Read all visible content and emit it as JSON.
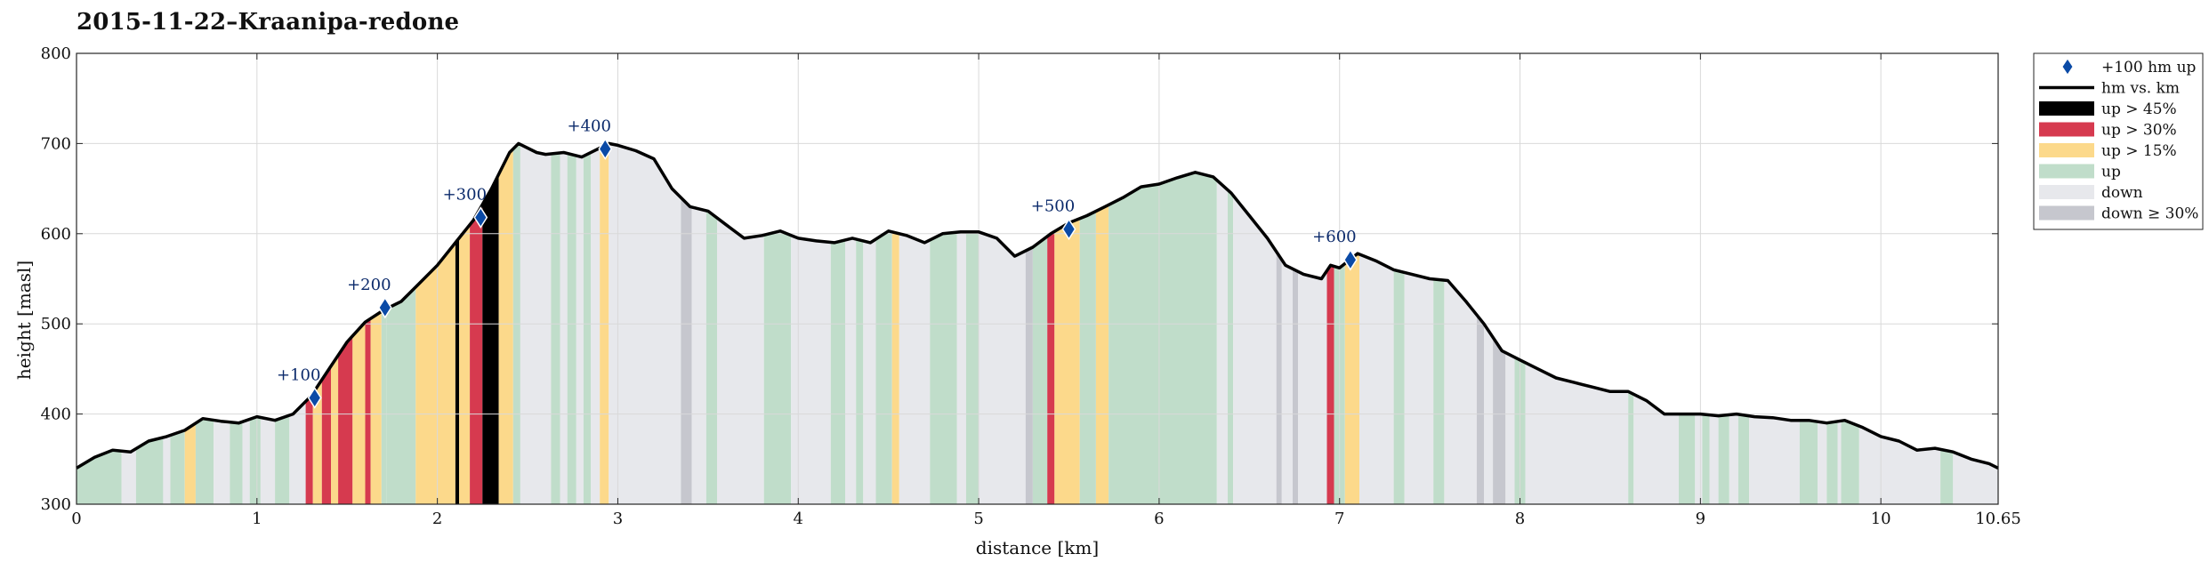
{
  "title": "2015-11-22–Kraanipa-redone",
  "colors": {
    "up45": "#000000",
    "up30": "#d63a4f",
    "up15": "#fcd98b",
    "up": "#c0ddca",
    "down": "#e7e8ec",
    "down30": "#c6c7ce",
    "profile": "#000000",
    "marker": "#0a4aa6",
    "grid": "#d9d9d9"
  },
  "chart_data": {
    "type": "area",
    "xlabel": "distance [km]",
    "ylabel": "height [masl]",
    "xlim": [
      0,
      10.65
    ],
    "ylim": [
      300,
      800
    ],
    "x_ticks": [
      "0",
      "1",
      "2",
      "3",
      "4",
      "5",
      "6",
      "7",
      "8",
      "9",
      "10",
      "10.65"
    ],
    "x_tick_values": [
      0,
      1,
      2,
      3,
      4,
      5,
      6,
      7,
      8,
      9,
      10,
      10.65
    ],
    "y_ticks": [
      "300",
      "400",
      "500",
      "600",
      "700",
      "800"
    ],
    "y_tick_values": [
      300,
      400,
      500,
      600,
      700,
      800
    ],
    "grid": true,
    "legend_position": "outside-right",
    "legend": [
      {
        "key": "marker",
        "label": "+100 hm up"
      },
      {
        "key": "line",
        "label": "hm vs. km"
      },
      {
        "key": "up45",
        "label": "up > 45%"
      },
      {
        "key": "up30",
        "label": "up > 30%"
      },
      {
        "key": "up15",
        "label": "up > 15%"
      },
      {
        "key": "up",
        "label": "up"
      },
      {
        "key": "down",
        "label": "down"
      },
      {
        "key": "down30",
        "label": "down ≥ 30%"
      }
    ],
    "profile": {
      "x": [
        0,
        0.1,
        0.2,
        0.3,
        0.4,
        0.5,
        0.6,
        0.7,
        0.8,
        0.9,
        1.0,
        1.1,
        1.2,
        1.3,
        1.4,
        1.5,
        1.6,
        1.7,
        1.8,
        1.9,
        2.0,
        2.1,
        2.2,
        2.3,
        2.4,
        2.45,
        2.55,
        2.6,
        2.7,
        2.8,
        2.95,
        3.0,
        3.1,
        3.2,
        3.3,
        3.4,
        3.5,
        3.6,
        3.7,
        3.8,
        3.9,
        4.0,
        4.1,
        4.2,
        4.3,
        4.4,
        4.5,
        4.6,
        4.7,
        4.8,
        4.9,
        5.0,
        5.1,
        5.2,
        5.3,
        5.4,
        5.5,
        5.6,
        5.7,
        5.8,
        5.9,
        6.0,
        6.1,
        6.2,
        6.3,
        6.4,
        6.5,
        6.6,
        6.7,
        6.8,
        6.9,
        6.95,
        7.0,
        7.1,
        7.2,
        7.3,
        7.4,
        7.5,
        7.6,
        7.7,
        7.8,
        7.9,
        8.0,
        8.1,
        8.2,
        8.3,
        8.4,
        8.5,
        8.6,
        8.7,
        8.8,
        8.9,
        9.0,
        9.1,
        9.2,
        9.3,
        9.4,
        9.5,
        9.6,
        9.7,
        9.8,
        9.9,
        10.0,
        10.1,
        10.2,
        10.3,
        10.4,
        10.5,
        10.6,
        10.65
      ],
      "y": [
        340,
        352,
        360,
        358,
        370,
        375,
        382,
        395,
        392,
        390,
        397,
        393,
        400,
        420,
        450,
        480,
        502,
        515,
        525,
        545,
        565,
        590,
        615,
        650,
        690,
        700,
        690,
        688,
        690,
        685,
        700,
        698,
        692,
        683,
        650,
        630,
        625,
        610,
        595,
        598,
        603,
        595,
        592,
        590,
        595,
        590,
        603,
        598,
        590,
        600,
        602,
        602,
        595,
        575,
        585,
        600,
        612,
        620,
        630,
        640,
        652,
        655,
        662,
        668,
        663,
        645,
        620,
        595,
        565,
        555,
        550,
        565,
        562,
        578,
        570,
        560,
        555,
        550,
        548,
        525,
        500,
        470,
        460,
        450,
        440,
        435,
        430,
        425,
        425,
        415,
        400,
        400,
        400,
        398,
        400,
        397,
        396,
        393,
        393,
        390,
        393,
        385,
        375,
        370,
        360,
        362,
        358,
        350,
        345,
        340
      ]
    },
    "segments": [
      {
        "x0": 0.0,
        "x1": 0.25,
        "cat": "up"
      },
      {
        "x0": 0.25,
        "x1": 0.33,
        "cat": "down"
      },
      {
        "x0": 0.33,
        "x1": 0.48,
        "cat": "up"
      },
      {
        "x0": 0.48,
        "x1": 0.52,
        "cat": "down"
      },
      {
        "x0": 0.52,
        "x1": 0.6,
        "cat": "up"
      },
      {
        "x0": 0.6,
        "x1": 0.66,
        "cat": "up15"
      },
      {
        "x0": 0.66,
        "x1": 0.76,
        "cat": "up"
      },
      {
        "x0": 0.76,
        "x1": 0.85,
        "cat": "down"
      },
      {
        "x0": 0.85,
        "x1": 0.92,
        "cat": "up"
      },
      {
        "x0": 0.92,
        "x1": 0.96,
        "cat": "down"
      },
      {
        "x0": 0.96,
        "x1": 1.02,
        "cat": "up"
      },
      {
        "x0": 1.02,
        "x1": 1.1,
        "cat": "down"
      },
      {
        "x0": 1.1,
        "x1": 1.18,
        "cat": "up"
      },
      {
        "x0": 1.18,
        "x1": 1.27,
        "cat": "down"
      },
      {
        "x0": 1.27,
        "x1": 1.31,
        "cat": "up30"
      },
      {
        "x0": 1.31,
        "x1": 1.36,
        "cat": "up15"
      },
      {
        "x0": 1.36,
        "x1": 1.41,
        "cat": "up30"
      },
      {
        "x0": 1.41,
        "x1": 1.45,
        "cat": "up15"
      },
      {
        "x0": 1.45,
        "x1": 1.53,
        "cat": "up30"
      },
      {
        "x0": 1.53,
        "x1": 1.6,
        "cat": "up15"
      },
      {
        "x0": 1.6,
        "x1": 1.63,
        "cat": "up30"
      },
      {
        "x0": 1.63,
        "x1": 1.69,
        "cat": "up15"
      },
      {
        "x0": 1.69,
        "x1": 1.72,
        "cat": "up"
      },
      {
        "x0": 1.72,
        "x1": 1.88,
        "cat": "up"
      },
      {
        "x0": 1.88,
        "x1": 2.1,
        "cat": "up15"
      },
      {
        "x0": 2.1,
        "x1": 2.12,
        "cat": "up45"
      },
      {
        "x0": 2.12,
        "x1": 2.18,
        "cat": "up15"
      },
      {
        "x0": 2.18,
        "x1": 2.25,
        "cat": "up30"
      },
      {
        "x0": 2.25,
        "x1": 2.34,
        "cat": "up45"
      },
      {
        "x0": 2.34,
        "x1": 2.42,
        "cat": "up15"
      },
      {
        "x0": 2.42,
        "x1": 2.46,
        "cat": "up"
      },
      {
        "x0": 2.46,
        "x1": 2.63,
        "cat": "down"
      },
      {
        "x0": 2.63,
        "x1": 2.68,
        "cat": "up"
      },
      {
        "x0": 2.68,
        "x1": 2.72,
        "cat": "down"
      },
      {
        "x0": 2.72,
        "x1": 2.77,
        "cat": "up"
      },
      {
        "x0": 2.77,
        "x1": 2.81,
        "cat": "down"
      },
      {
        "x0": 2.81,
        "x1": 2.85,
        "cat": "up"
      },
      {
        "x0": 2.85,
        "x1": 2.9,
        "cat": "down"
      },
      {
        "x0": 2.9,
        "x1": 2.95,
        "cat": "up15"
      },
      {
        "x0": 2.95,
        "x1": 3.35,
        "cat": "down"
      },
      {
        "x0": 3.35,
        "x1": 3.41,
        "cat": "down30"
      },
      {
        "x0": 3.41,
        "x1": 3.49,
        "cat": "down"
      },
      {
        "x0": 3.49,
        "x1": 3.55,
        "cat": "up"
      },
      {
        "x0": 3.55,
        "x1": 3.81,
        "cat": "down"
      },
      {
        "x0": 3.81,
        "x1": 3.96,
        "cat": "up"
      },
      {
        "x0": 3.96,
        "x1": 4.18,
        "cat": "down"
      },
      {
        "x0": 4.18,
        "x1": 4.26,
        "cat": "up"
      },
      {
        "x0": 4.26,
        "x1": 4.32,
        "cat": "down"
      },
      {
        "x0": 4.32,
        "x1": 4.36,
        "cat": "up"
      },
      {
        "x0": 4.36,
        "x1": 4.43,
        "cat": "down"
      },
      {
        "x0": 4.43,
        "x1": 4.52,
        "cat": "up"
      },
      {
        "x0": 4.52,
        "x1": 4.56,
        "cat": "up15"
      },
      {
        "x0": 4.56,
        "x1": 4.73,
        "cat": "down"
      },
      {
        "x0": 4.73,
        "x1": 4.88,
        "cat": "up"
      },
      {
        "x0": 4.88,
        "x1": 4.93,
        "cat": "down"
      },
      {
        "x0": 4.93,
        "x1": 5.0,
        "cat": "up"
      },
      {
        "x0": 5.0,
        "x1": 5.26,
        "cat": "down"
      },
      {
        "x0": 5.26,
        "x1": 5.3,
        "cat": "down30"
      },
      {
        "x0": 5.3,
        "x1": 5.38,
        "cat": "up"
      },
      {
        "x0": 5.38,
        "x1": 5.42,
        "cat": "up30"
      },
      {
        "x0": 5.42,
        "x1": 5.56,
        "cat": "up15"
      },
      {
        "x0": 5.56,
        "x1": 5.65,
        "cat": "up"
      },
      {
        "x0": 5.65,
        "x1": 5.72,
        "cat": "up15"
      },
      {
        "x0": 5.72,
        "x1": 6.04,
        "cat": "up"
      },
      {
        "x0": 6.04,
        "x1": 6.32,
        "cat": "up"
      },
      {
        "x0": 6.32,
        "x1": 6.38,
        "cat": "down"
      },
      {
        "x0": 6.38,
        "x1": 6.41,
        "cat": "up"
      },
      {
        "x0": 6.41,
        "x1": 6.65,
        "cat": "down"
      },
      {
        "x0": 6.65,
        "x1": 6.68,
        "cat": "down30"
      },
      {
        "x0": 6.68,
        "x1": 6.74,
        "cat": "down"
      },
      {
        "x0": 6.74,
        "x1": 6.77,
        "cat": "down30"
      },
      {
        "x0": 6.77,
        "x1": 6.93,
        "cat": "down"
      },
      {
        "x0": 6.93,
        "x1": 6.97,
        "cat": "up30"
      },
      {
        "x0": 6.97,
        "x1": 7.03,
        "cat": "up"
      },
      {
        "x0": 7.03,
        "x1": 7.11,
        "cat": "up15"
      },
      {
        "x0": 7.11,
        "x1": 7.3,
        "cat": "down"
      },
      {
        "x0": 7.3,
        "x1": 7.36,
        "cat": "up"
      },
      {
        "x0": 7.36,
        "x1": 7.52,
        "cat": "down"
      },
      {
        "x0": 7.52,
        "x1": 7.58,
        "cat": "up"
      },
      {
        "x0": 7.58,
        "x1": 7.76,
        "cat": "down"
      },
      {
        "x0": 7.76,
        "x1": 7.8,
        "cat": "down30"
      },
      {
        "x0": 7.8,
        "x1": 7.85,
        "cat": "down"
      },
      {
        "x0": 7.85,
        "x1": 7.92,
        "cat": "down30"
      },
      {
        "x0": 7.92,
        "x1": 7.97,
        "cat": "down"
      },
      {
        "x0": 7.97,
        "x1": 8.03,
        "cat": "up"
      },
      {
        "x0": 8.03,
        "x1": 8.6,
        "cat": "down"
      },
      {
        "x0": 8.6,
        "x1": 8.63,
        "cat": "up"
      },
      {
        "x0": 8.63,
        "x1": 8.88,
        "cat": "down"
      },
      {
        "x0": 8.88,
        "x1": 8.97,
        "cat": "up"
      },
      {
        "x0": 8.97,
        "x1": 9.01,
        "cat": "down"
      },
      {
        "x0": 9.01,
        "x1": 9.05,
        "cat": "up"
      },
      {
        "x0": 9.05,
        "x1": 9.1,
        "cat": "down"
      },
      {
        "x0": 9.1,
        "x1": 9.16,
        "cat": "up"
      },
      {
        "x0": 9.16,
        "x1": 9.21,
        "cat": "down"
      },
      {
        "x0": 9.21,
        "x1": 9.27,
        "cat": "up"
      },
      {
        "x0": 9.27,
        "x1": 9.55,
        "cat": "down"
      },
      {
        "x0": 9.55,
        "x1": 9.65,
        "cat": "up"
      },
      {
        "x0": 9.65,
        "x1": 9.7,
        "cat": "down"
      },
      {
        "x0": 9.7,
        "x1": 9.76,
        "cat": "up"
      },
      {
        "x0": 9.76,
        "x1": 9.78,
        "cat": "down"
      },
      {
        "x0": 9.78,
        "x1": 9.88,
        "cat": "up"
      },
      {
        "x0": 9.88,
        "x1": 10.33,
        "cat": "down"
      },
      {
        "x0": 10.33,
        "x1": 10.4,
        "cat": "up"
      },
      {
        "x0": 10.4,
        "x1": 10.65,
        "cat": "down"
      }
    ],
    "markers": [
      {
        "label": "+100",
        "x": 1.32,
        "y": 418
      },
      {
        "label": "+200",
        "x": 1.71,
        "y": 518
      },
      {
        "label": "+300",
        "x": 2.24,
        "y": 618
      },
      {
        "label": "+400",
        "x": 2.93,
        "y": 694
      },
      {
        "label": "+500",
        "x": 5.5,
        "y": 605
      },
      {
        "label": "+600",
        "x": 7.06,
        "y": 571
      }
    ]
  }
}
